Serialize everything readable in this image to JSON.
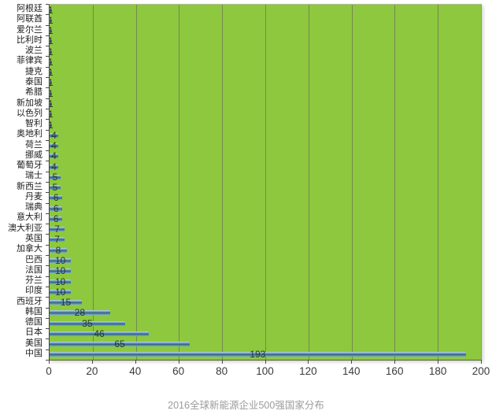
{
  "caption": {
    "text": "2016全球新能源企业500强国家分布",
    "color": "#9b9b9b"
  },
  "chart_data": {
    "type": "bar",
    "orientation": "horizontal",
    "title": "2016全球新能源企业500强国家分布",
    "categories": [
      "阿根廷",
      "阿联酋",
      "爱尔兰",
      "比利时",
      "波兰",
      "菲律宾",
      "捷克",
      "泰国",
      "希腊",
      "新加坡",
      "以色列",
      "智利",
      "奥地利",
      "荷兰",
      "挪威",
      "葡萄牙",
      "瑞士",
      "新西兰",
      "丹麦",
      "瑞典",
      "意大利",
      "澳大利亚",
      "英国",
      "加拿大",
      "巴西",
      "法国",
      "芬兰",
      "印度",
      "西班牙",
      "韩国",
      "德国",
      "日本",
      "美国",
      "中国"
    ],
    "values": [
      1,
      1,
      1,
      1,
      1,
      1,
      1,
      1,
      1,
      1,
      1,
      1,
      4,
      4,
      4,
      4,
      5,
      5,
      6,
      6,
      6,
      7,
      7,
      8,
      10,
      10,
      10,
      10,
      15,
      28,
      35,
      46,
      65,
      193
    ],
    "value_labels_shown": true,
    "xlabel": "",
    "ylabel": "",
    "xlim": [
      0,
      200
    ],
    "x_ticks": [
      0,
      20,
      40,
      60,
      80,
      100,
      120,
      140,
      160,
      180,
      200
    ],
    "grid": true,
    "legend": false,
    "colors": {
      "plot_bg": "#8dc83e",
      "bar": "#5b8cb8",
      "bar_shadow": "#2e6587",
      "bar_highlight": "#bdd6e3",
      "grid": "#75894e",
      "value_label": "#27381f",
      "axis_text": "#3a3a3a",
      "caption": "#9b9b9b"
    }
  }
}
